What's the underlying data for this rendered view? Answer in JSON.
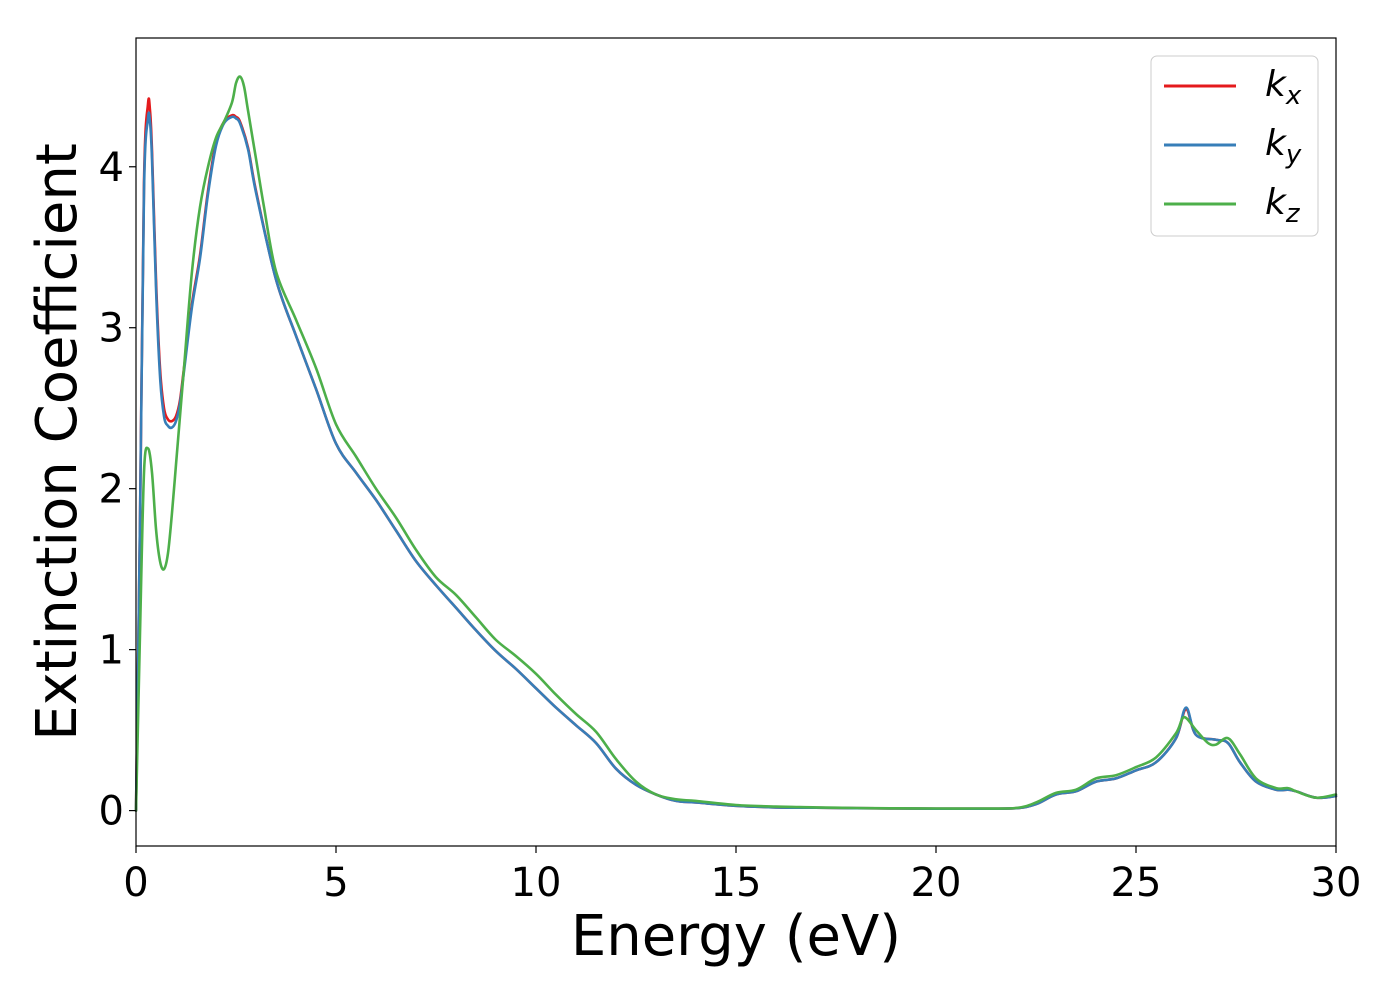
{
  "chart_data": {
    "type": "line",
    "title": "",
    "xlabel": "Energy (eV)",
    "ylabel": "Extinction Coefficient",
    "xlim": [
      0,
      30
    ],
    "ylim": [
      -0.22,
      4.8
    ],
    "xticks": [
      0,
      5,
      10,
      15,
      20,
      25,
      30
    ],
    "yticks": [
      0,
      1,
      2,
      3,
      4
    ],
    "grid": false,
    "legend_position": "top-right",
    "series": [
      {
        "name": "k_x",
        "label_main": "k",
        "label_sub": "x",
        "color": "#e41a1c",
        "x": [
          0,
          0.1,
          0.2,
          0.3,
          0.35,
          0.4,
          0.5,
          0.6,
          0.7,
          0.8,
          0.9,
          1.0,
          1.1,
          1.2,
          1.4,
          1.6,
          1.8,
          2.0,
          2.2,
          2.4,
          2.5,
          2.6,
          2.8,
          3.0,
          3.5,
          4.0,
          4.5,
          5.0,
          5.5,
          6.0,
          6.5,
          7.0,
          7.5,
          8.0,
          8.5,
          9.0,
          9.5,
          10.0,
          10.5,
          11.0,
          11.5,
          12.0,
          12.5,
          13.0,
          13.5,
          14.0,
          15.0,
          16.0,
          17.0,
          18.0,
          19.0,
          20.0,
          21.0,
          22.0,
          22.5,
          23.0,
          23.5,
          24.0,
          24.5,
          25.0,
          25.5,
          26.0,
          26.25,
          26.5,
          27.0,
          27.3,
          27.6,
          28.0,
          28.5,
          28.8,
          29.0,
          29.5,
          30.0
        ],
        "y": [
          0.0,
          1.8,
          3.9,
          4.39,
          4.35,
          4.1,
          3.3,
          2.75,
          2.5,
          2.43,
          2.42,
          2.45,
          2.55,
          2.75,
          3.15,
          3.45,
          3.85,
          4.15,
          4.28,
          4.32,
          4.31,
          4.28,
          4.12,
          3.85,
          3.3,
          2.95,
          2.62,
          2.28,
          2.1,
          1.93,
          1.74,
          1.55,
          1.4,
          1.26,
          1.12,
          0.99,
          0.88,
          0.76,
          0.64,
          0.53,
          0.42,
          0.26,
          0.16,
          0.1,
          0.06,
          0.05,
          0.03,
          0.02,
          0.018,
          0.015,
          0.013,
          0.012,
          0.012,
          0.015,
          0.04,
          0.1,
          0.12,
          0.18,
          0.2,
          0.25,
          0.3,
          0.45,
          0.63,
          0.47,
          0.44,
          0.42,
          0.3,
          0.18,
          0.13,
          0.13,
          0.12,
          0.08,
          0.09
        ]
      },
      {
        "name": "k_y",
        "label_main": "k",
        "label_sub": "y",
        "color": "#377eb8",
        "x": [
          0,
          0.1,
          0.2,
          0.3,
          0.35,
          0.4,
          0.5,
          0.6,
          0.7,
          0.8,
          0.9,
          1.0,
          1.1,
          1.2,
          1.4,
          1.6,
          1.8,
          2.0,
          2.2,
          2.4,
          2.5,
          2.6,
          2.8,
          3.0,
          3.5,
          4.0,
          4.5,
          5.0,
          5.5,
          6.0,
          6.5,
          7.0,
          7.5,
          8.0,
          8.5,
          9.0,
          9.5,
          10.0,
          10.5,
          11.0,
          11.5,
          12.0,
          12.5,
          13.0,
          13.5,
          14.0,
          15.0,
          16.0,
          17.0,
          18.0,
          19.0,
          20.0,
          21.0,
          22.0,
          22.5,
          23.0,
          23.5,
          24.0,
          24.5,
          25.0,
          25.5,
          26.0,
          26.25,
          26.5,
          27.0,
          27.3,
          27.6,
          28.0,
          28.5,
          28.8,
          29.0,
          29.5,
          30.0
        ],
        "y": [
          0.0,
          1.8,
          3.85,
          4.3,
          4.28,
          4.05,
          3.25,
          2.7,
          2.45,
          2.39,
          2.38,
          2.42,
          2.53,
          2.73,
          3.13,
          3.43,
          3.83,
          4.13,
          4.27,
          4.31,
          4.3,
          4.27,
          4.11,
          3.84,
          3.3,
          2.95,
          2.62,
          2.28,
          2.1,
          1.93,
          1.74,
          1.55,
          1.4,
          1.26,
          1.12,
          0.99,
          0.88,
          0.76,
          0.64,
          0.53,
          0.42,
          0.26,
          0.16,
          0.1,
          0.06,
          0.05,
          0.03,
          0.02,
          0.018,
          0.015,
          0.013,
          0.012,
          0.012,
          0.015,
          0.04,
          0.1,
          0.12,
          0.18,
          0.2,
          0.25,
          0.3,
          0.45,
          0.64,
          0.47,
          0.44,
          0.42,
          0.3,
          0.18,
          0.13,
          0.13,
          0.12,
          0.08,
          0.09
        ]
      },
      {
        "name": "k_z",
        "label_main": "k",
        "label_sub": "z",
        "color": "#4daf4a",
        "x": [
          0,
          0.1,
          0.2,
          0.3,
          0.4,
          0.5,
          0.6,
          0.7,
          0.8,
          0.9,
          1.0,
          1.1,
          1.2,
          1.4,
          1.6,
          1.8,
          2.0,
          2.2,
          2.4,
          2.5,
          2.6,
          2.7,
          2.8,
          3.0,
          3.2,
          3.5,
          4.0,
          4.5,
          5.0,
          5.5,
          6.0,
          6.5,
          7.0,
          7.5,
          8.0,
          8.5,
          9.0,
          9.5,
          10.0,
          10.5,
          11.0,
          11.5,
          12.0,
          12.5,
          13.0,
          13.5,
          14.0,
          15.0,
          16.0,
          17.0,
          18.0,
          19.0,
          20.0,
          21.0,
          22.0,
          22.5,
          23.0,
          23.5,
          24.0,
          24.5,
          25.0,
          25.5,
          26.0,
          26.2,
          26.5,
          26.8,
          27.0,
          27.3,
          27.6,
          28.0,
          28.5,
          28.8,
          29.0,
          29.5,
          30.0
        ],
        "y": [
          0.0,
          1.1,
          2.1,
          2.25,
          2.1,
          1.75,
          1.55,
          1.5,
          1.6,
          1.85,
          2.15,
          2.45,
          2.75,
          3.35,
          3.75,
          4.0,
          4.18,
          4.28,
          4.4,
          4.52,
          4.56,
          4.5,
          4.35,
          4.05,
          3.75,
          3.35,
          3.05,
          2.75,
          2.4,
          2.2,
          2.0,
          1.82,
          1.62,
          1.45,
          1.34,
          1.2,
          1.06,
          0.96,
          0.85,
          0.72,
          0.6,
          0.49,
          0.32,
          0.18,
          0.1,
          0.07,
          0.06,
          0.035,
          0.025,
          0.02,
          0.016,
          0.014,
          0.013,
          0.013,
          0.016,
          0.05,
          0.11,
          0.13,
          0.2,
          0.22,
          0.27,
          0.33,
          0.48,
          0.58,
          0.5,
          0.42,
          0.41,
          0.45,
          0.35,
          0.2,
          0.14,
          0.14,
          0.12,
          0.08,
          0.1
        ]
      }
    ]
  }
}
